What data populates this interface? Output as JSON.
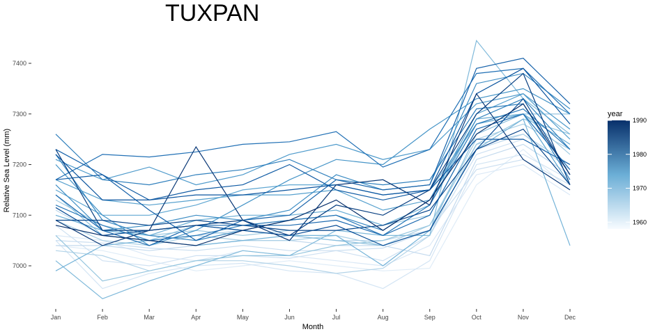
{
  "chart_data": {
    "type": "line",
    "title": "TUXPAN",
    "xlabel": "Month",
    "ylabel": "Relative Sea Level (mm)",
    "categories": [
      "Jan",
      "Feb",
      "Mar",
      "Apr",
      "May",
      "Jun",
      "Jul",
      "Aug",
      "Sep",
      "Oct",
      "Nov",
      "Dec"
    ],
    "ylim": [
      6920,
      7460
    ],
    "yticks": [
      7000,
      7100,
      7200,
      7300,
      7400
    ],
    "ytick_labels": [
      "7000",
      "7100",
      "7200",
      "7300",
      "7400"
    ],
    "grid": false,
    "legend": {
      "title": "year",
      "position": "right",
      "type": "colorbar",
      "range": [
        1958,
        1990
      ],
      "ticks": [
        1960,
        1970,
        1980,
        1990
      ],
      "tick_labels": [
        "1960",
        "1970",
        "1980",
        "1990"
      ],
      "color_low": "#f7fbff",
      "color_high": "#08306b"
    },
    "series": [
      {
        "year": 1958,
        "values": [
          7040,
          7030,
          7010,
          6990,
          7000,
          7010,
          7000,
          6990,
          6995,
          7160,
          7230,
          7150
        ]
      },
      {
        "year": 1959,
        "values": [
          7060,
          7050,
          7020,
          7010,
          7030,
          7020,
          7010,
          7000,
          7040,
          7180,
          7200,
          7140
        ]
      },
      {
        "year": 1960,
        "values": [
          7050,
          6955,
          6985,
          7000,
          7005,
          6990,
          6985,
          6955,
          7010,
          7200,
          7220,
          7170
        ]
      },
      {
        "year": 1961,
        "values": [
          7080,
          7010,
          7000,
          7020,
          7020,
          7015,
          7030,
          7010,
          7060,
          7220,
          7250,
          7200
        ]
      },
      {
        "year": 1962,
        "values": [
          7050,
          7045,
          7035,
          7030,
          7040,
          7030,
          7030,
          7035,
          7070,
          7190,
          7210,
          7160
        ]
      },
      {
        "year": 1963,
        "values": [
          7040,
          7040,
          7030,
          7040,
          7050,
          7050,
          7040,
          7040,
          7020,
          7210,
          7240,
          7180
        ]
      },
      {
        "year": 1964,
        "values": [
          7110,
          7060,
          7050,
          7060,
          7070,
          7060,
          7050,
          7050,
          7070,
          7230,
          7260,
          7190
        ]
      },
      {
        "year": 1965,
        "values": [
          7030,
          7020,
          6990,
          7010,
          7010,
          7000,
          6985,
          6995,
          7060,
          7240,
          7260,
          7200
        ]
      },
      {
        "year": 1966,
        "values": [
          7090,
          7050,
          7040,
          7060,
          7050,
          7050,
          7060,
          7040,
          7080,
          7250,
          7280,
          7230
        ]
      },
      {
        "year": 1967,
        "values": [
          7130,
          7080,
          7060,
          7070,
          7060,
          7070,
          7070,
          7080,
          7100,
          7270,
          7300,
          7220
        ]
      },
      {
        "year": 1968,
        "values": [
          7060,
          6970,
          6990,
          7010,
          7020,
          7020,
          7040,
          7050,
          7080,
          7240,
          7290,
          7260
        ]
      },
      {
        "year": 1969,
        "values": [
          7140,
          7060,
          7050,
          7080,
          7070,
          7060,
          7050,
          7040,
          7070,
          7260,
          7300,
          7300
        ]
      },
      {
        "year": 1970,
        "values": [
          7010,
          6935,
          6970,
          7000,
          7030,
          7020,
          7070,
          7060,
          7060,
          7445,
          7330,
          7260
        ]
      },
      {
        "year": 1971,
        "values": [
          6990,
          7040,
          7050,
          7040,
          7050,
          7060,
          7060,
          7000,
          7070,
          7230,
          7290,
          7040
        ]
      },
      {
        "year": 1972,
        "values": [
          7100,
          7070,
          7060,
          7090,
          7100,
          7100,
          7110,
          7080,
          7120,
          7290,
          7300,
          7240
        ]
      },
      {
        "year": 1973,
        "values": [
          7150,
          7100,
          7100,
          7120,
          7150,
          7160,
          7160,
          7140,
          7150,
          7280,
          7300,
          7160
        ]
      },
      {
        "year": 1974,
        "values": [
          7170,
          7130,
          7120,
          7130,
          7140,
          7140,
          7150,
          7110,
          7130,
          7300,
          7340,
          7250
        ]
      },
      {
        "year": 1975,
        "values": [
          7210,
          7170,
          7195,
          7160,
          7180,
          7220,
          7240,
          7210,
          7230,
          7320,
          7340,
          7270
        ]
      },
      {
        "year": 1976,
        "values": [
          7200,
          7100,
          7040,
          7070,
          7120,
          7170,
          7210,
          7200,
          7270,
          7330,
          7350,
          7300
        ]
      },
      {
        "year": 1977,
        "values": [
          7160,
          7070,
          7080,
          7100,
          7090,
          7110,
          7180,
          7150,
          7160,
          7360,
          7380,
          7310
        ]
      },
      {
        "year": 1978,
        "values": [
          7220,
          7090,
          7060,
          7050,
          7070,
          7090,
          7100,
          7070,
          7130,
          7290,
          7330,
          7230
        ]
      },
      {
        "year": 1979,
        "values": [
          7260,
          7170,
          7160,
          7180,
          7190,
          7210,
          7170,
          7160,
          7170,
          7310,
          7320,
          7170
        ]
      },
      {
        "year": 1980,
        "values": [
          7120,
          7080,
          7050,
          7060,
          7080,
          7090,
          7100,
          7060,
          7120,
          7280,
          7310,
          7230
        ]
      },
      {
        "year": 1981,
        "values": [
          7170,
          7220,
          7215,
          7225,
          7240,
          7245,
          7265,
          7195,
          7230,
          7380,
          7390,
          7300
        ]
      },
      {
        "year": 1982,
        "values": [
          7140,
          7070,
          7040,
          7080,
          7080,
          7080,
          7090,
          7060,
          7100,
          7270,
          7300,
          7190
        ]
      },
      {
        "year": 1983,
        "values": [
          7230,
          7180,
          7110,
          7050,
          7090,
          7100,
          7170,
          7150,
          7160,
          7390,
          7410,
          7320
        ]
      },
      {
        "year": 1984,
        "values": [
          7170,
          7180,
          7130,
          7150,
          7160,
          7200,
          7150,
          7130,
          7150,
          7250,
          7250,
          7200
        ]
      },
      {
        "year": 1985,
        "values": [
          7220,
          7130,
          7130,
          7140,
          7140,
          7150,
          7160,
          7140,
          7150,
          7340,
          7390,
          7280
        ]
      },
      {
        "year": 1986,
        "values": [
          7115,
          7060,
          7070,
          7080,
          7070,
          7060,
          7080,
          7040,
          7070,
          7230,
          7330,
          7180
        ]
      },
      {
        "year": 1987,
        "values": [
          7090,
          7090,
          7080,
          7090,
          7080,
          7070,
          7070,
          7080,
          7110,
          7230,
          7270,
          7160
        ]
      },
      {
        "year": 1988,
        "values": [
          7230,
          7070,
          7070,
          7080,
          7090,
          7060,
          7120,
          7100,
          7150,
          7300,
          7380,
          7160
        ]
      },
      {
        "year": 1989,
        "values": [
          7090,
          7040,
          7070,
          7235,
          7090,
          7050,
          7160,
          7170,
          7120,
          7340,
          7210,
          7150
        ]
      },
      {
        "year": 1990,
        "values": [
          7080,
          7060,
          7050,
          7040,
          7070,
          7090,
          7130,
          7070,
          7130,
          7260,
          7320,
          7180
        ]
      }
    ]
  }
}
